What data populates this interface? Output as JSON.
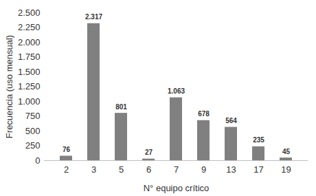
{
  "chart_data": {
    "type": "bar",
    "x_label": "N° equipo crítico",
    "y_label": "Frecuencia (uso mensual)",
    "categories": [
      "2",
      "3",
      "5",
      "6",
      "7",
      "9",
      "13",
      "17",
      "19"
    ],
    "values": [
      76,
      2317,
      801,
      27,
      1063,
      678,
      564,
      235,
      45
    ],
    "value_labels": [
      "76",
      "2.317",
      "801",
      "27",
      "1.063",
      "678",
      "564",
      "235",
      "45"
    ],
    "data_labels": true,
    "color": "#808080",
    "ylim": [
      0,
      2500
    ],
    "yticks": [
      0,
      250,
      500,
      750,
      {
        "value": 1000,
        "label": "1.000"
      },
      {
        "value": 1250,
        "label": "1.250"
      },
      {
        "value": 1500,
        "label": "1.500"
      },
      {
        "value": 1750,
        "label": "1.750"
      },
      {
        "value": 2000,
        "label": "2.000"
      },
      {
        "value": 2250,
        "label": "2.250"
      },
      {
        "value": 2500,
        "label": "2.500"
      }
    ],
    "grid": false
  }
}
